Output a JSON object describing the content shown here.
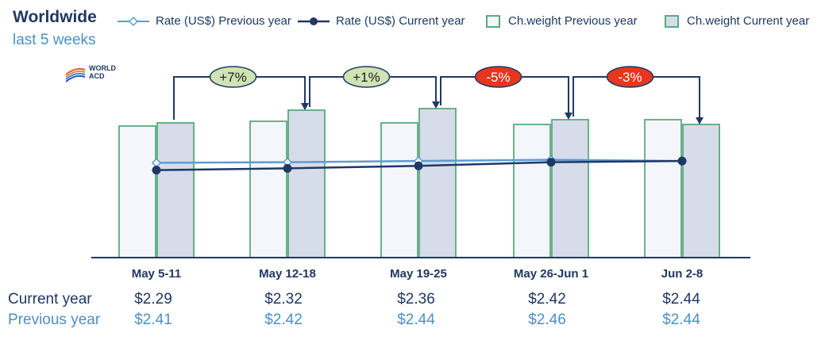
{
  "header": {
    "title": "Worldwide",
    "subtitle": "last 5 weeks"
  },
  "logo": {
    "line1": "WORLD",
    "line2": "ACD"
  },
  "legend": [
    {
      "label": "Rate (US$) Previous year",
      "kind": "line-diamond",
      "color": "#5b9bd5"
    },
    {
      "label": "Rate (US$) Current year",
      "kind": "line-dot",
      "color": "#1f3864"
    },
    {
      "label": "Ch.weight Previous year",
      "kind": "box",
      "color": "#f4f6fb",
      "border": "#5aaa7c"
    },
    {
      "label": "Ch.weight Current year",
      "kind": "box",
      "color": "#d6dcea",
      "border": "#5aaa7c"
    }
  ],
  "table": {
    "current_label": "Current year",
    "previous_label": "Previous year",
    "current": [
      "$2.29",
      "$2.32",
      "$2.36",
      "$2.42",
      "$2.44"
    ],
    "previous": [
      "$2.41",
      "$2.42",
      "$2.44",
      "$2.46",
      "$2.44"
    ]
  },
  "chart_data": {
    "type": "bar",
    "categories": [
      "May 5-11",
      "May 12-18",
      "May 19-25",
      "May 26-Jun 1",
      "Jun 2-8"
    ],
    "series": [
      {
        "name": "Ch.weight Previous year",
        "kind": "bar",
        "values": [
          0.83,
          0.86,
          0.85,
          0.84,
          0.87
        ]
      },
      {
        "name": "Ch.weight Current year",
        "kind": "bar",
        "values": [
          0.85,
          0.93,
          0.94,
          0.87,
          0.84
        ]
      },
      {
        "name": "Rate (US$) Previous year",
        "kind": "line",
        "values": [
          2.41,
          2.42,
          2.44,
          2.46,
          2.44
        ]
      },
      {
        "name": "Rate (US$) Current year",
        "kind": "line",
        "values": [
          2.29,
          2.32,
          2.36,
          2.42,
          2.44
        ]
      }
    ],
    "annotations": [
      {
        "text": "+7%",
        "sign": "positive"
      },
      {
        "text": "+1%",
        "sign": "positive"
      },
      {
        "text": "-5%",
        "sign": "negative"
      },
      {
        "text": "-3%",
        "sign": "negative"
      }
    ],
    "colors": {
      "bar_prev_fill": "#f4f6fb",
      "bar_cur_fill": "#d6dcea",
      "bar_border": "#5aaa7c",
      "line_prev": "#5b9bd5",
      "line_cur": "#1f3864",
      "positive_bubble": "#cfe3b4",
      "negative_bubble": "#e8361e",
      "arrow": "#1f3864"
    }
  }
}
